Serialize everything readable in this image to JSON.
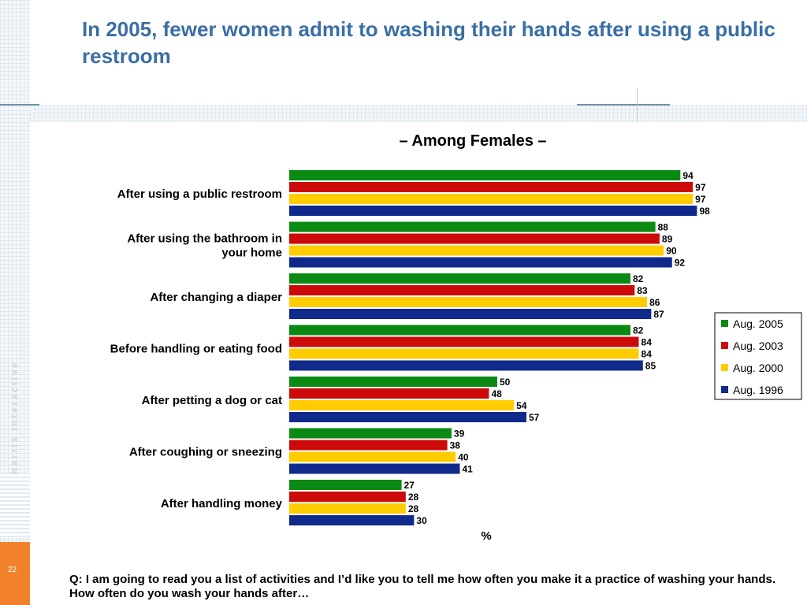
{
  "title": "In 2005, fewer women admit to washing their hands after using a public restroom",
  "brand": "Harris Interactive",
  "page_number": "22",
  "question": "Q: I am going to read you a list of activities and I’d like you to tell me how often you make it a practice of washing your hands. How often do you wash your hands after…",
  "chart_data": {
    "type": "bar",
    "orientation": "horizontal",
    "title": "– Among Females –",
    "xlabel": "%",
    "ylabel": "",
    "xlim": [
      0,
      100
    ],
    "grid": false,
    "legend_position": "right",
    "categories": [
      [
        "After using a public restroom"
      ],
      [
        "After using the bathroom in",
        "your home"
      ],
      [
        "After changing a diaper"
      ],
      [
        "Before handling or eating food"
      ],
      [
        "After petting a dog or cat"
      ],
      [
        "After coughing or sneezing"
      ],
      [
        "After handling money"
      ]
    ],
    "series": [
      {
        "name": "Aug. 2005",
        "color": "#0a8a12",
        "values": [
          94,
          88,
          82,
          82,
          50,
          39,
          27
        ]
      },
      {
        "name": "Aug. 2003",
        "color": "#cc0a0a",
        "values": [
          97,
          89,
          83,
          84,
          48,
          38,
          28
        ]
      },
      {
        "name": "Aug. 2000",
        "color": "#ffcc00",
        "values": [
          97,
          90,
          86,
          84,
          54,
          40,
          28
        ]
      },
      {
        "name": "Aug. 1996",
        "color": "#102a8c",
        "values": [
          98,
          92,
          87,
          85,
          57,
          41,
          30
        ]
      }
    ]
  }
}
